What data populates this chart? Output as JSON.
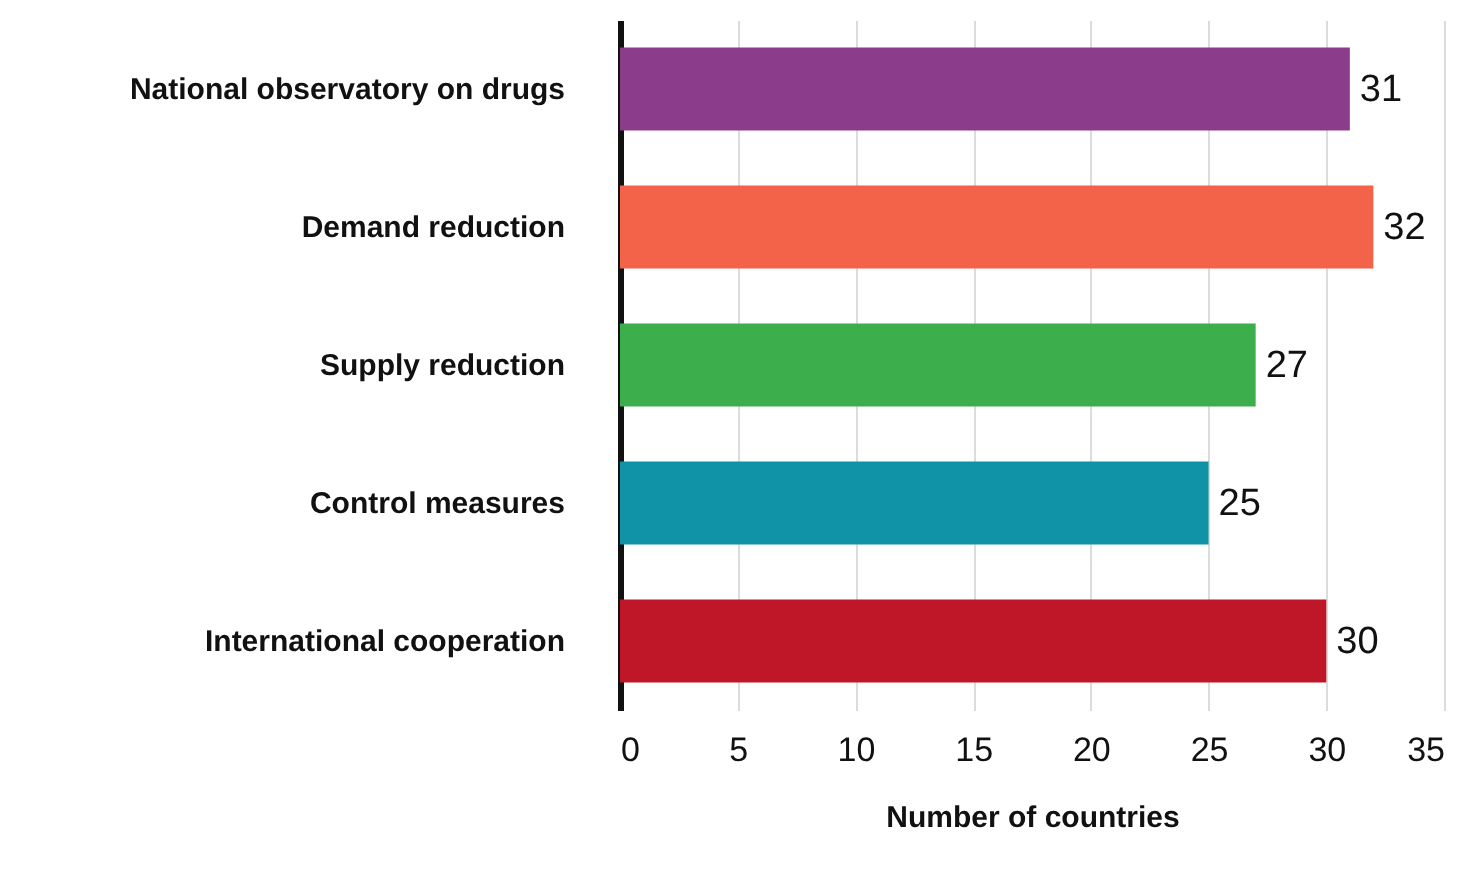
{
  "chart_data": {
    "type": "bar",
    "orientation": "horizontal",
    "xlabel": "Number of countries",
    "categories": [
      "National observatory on drugs",
      "Demand reduction",
      "Supply reduction",
      "Control measures",
      "International cooperation"
    ],
    "values": [
      31,
      32,
      27,
      25,
      30
    ],
    "colors": [
      "#8b3c8a",
      "#f26349",
      "#3cae4b",
      "#1193a7",
      "#bf1727"
    ],
    "xlim": [
      0,
      35
    ],
    "xticks": [
      0,
      5,
      10,
      15,
      20,
      25,
      30,
      35
    ],
    "grid": "x",
    "data_labels": true
  }
}
